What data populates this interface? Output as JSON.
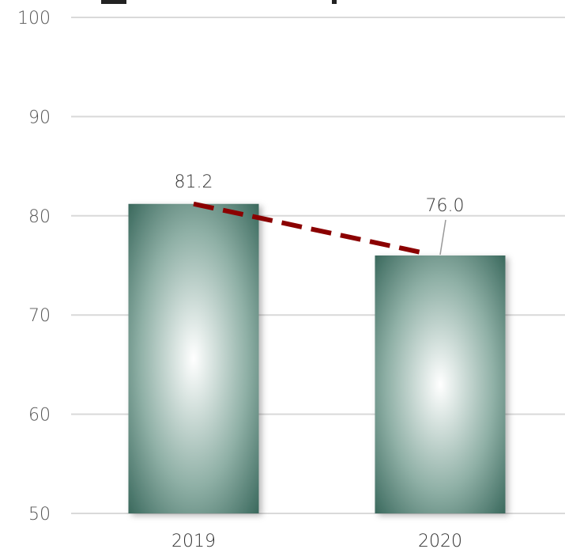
{
  "chart_data": {
    "type": "bar",
    "categories": [
      "2019",
      "2020"
    ],
    "values": [
      81.2,
      76.0
    ],
    "value_labels": [
      "81.2",
      "76.0"
    ],
    "ylim": [
      50,
      100
    ],
    "yticks": [
      50,
      60,
      70,
      80,
      90,
      100
    ],
    "ytick_labels": [
      "50",
      "60",
      "70",
      "80",
      "90",
      "100"
    ],
    "grid": true,
    "trend_line": {
      "from": "2019",
      "to": "2020",
      "style": "dashed"
    },
    "colors": {
      "bar_edge": "#2e5e52",
      "bar_center": "#ffffff",
      "trend": "#8b0000",
      "grid": "#d9d9d9",
      "leader": "#999999"
    }
  }
}
